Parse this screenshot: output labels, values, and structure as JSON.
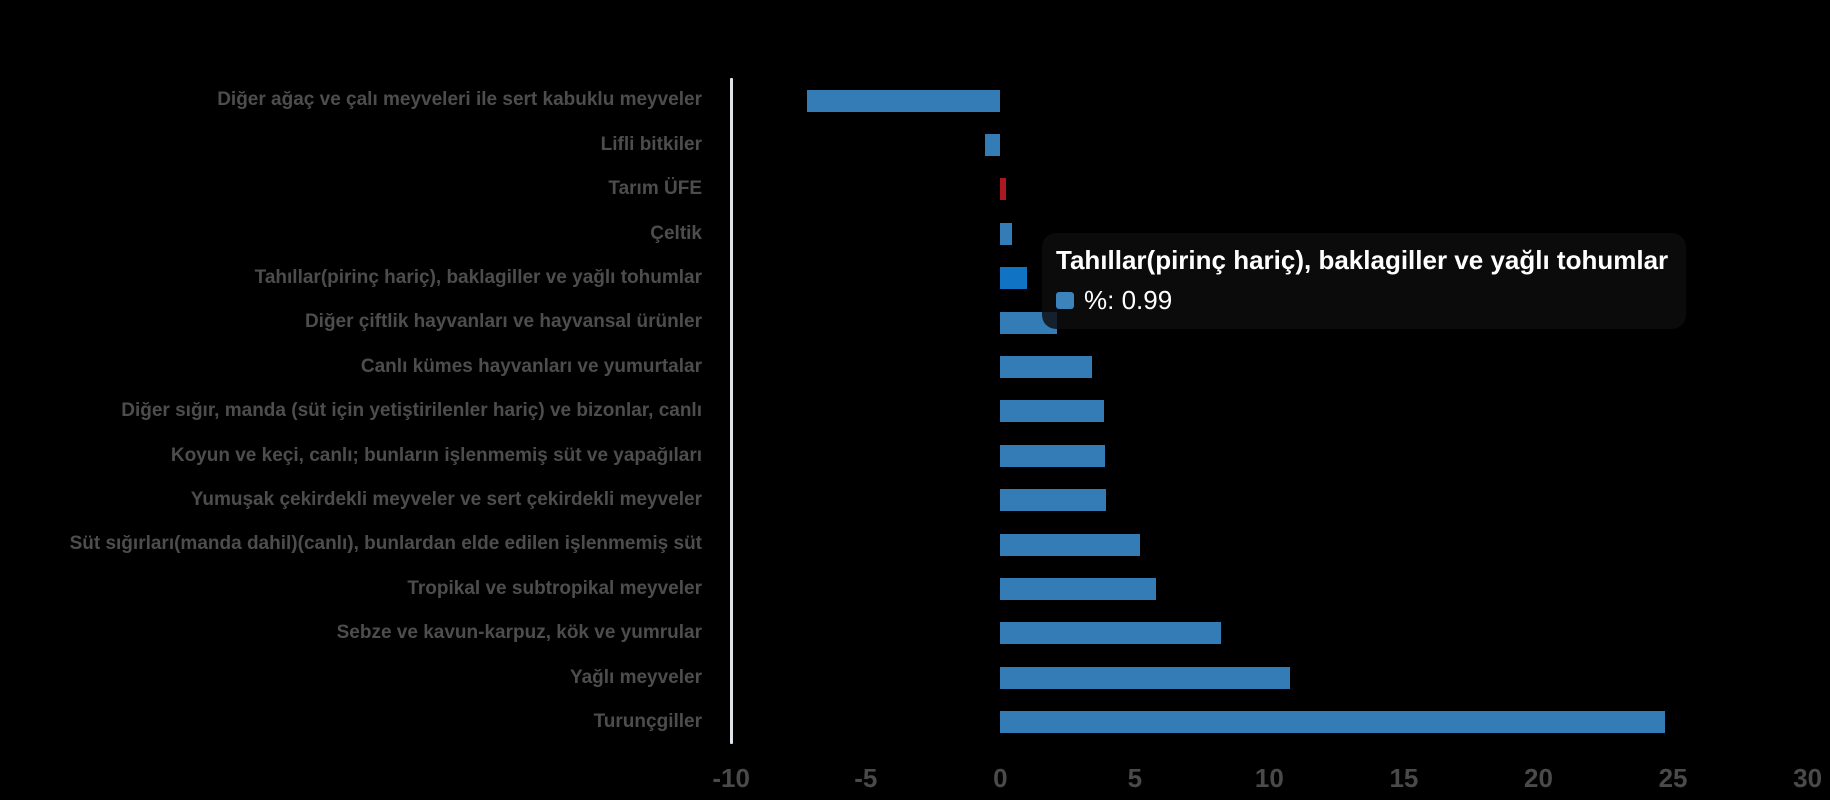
{
  "chart_data": {
    "type": "bar",
    "orientation": "horizontal",
    "title": "",
    "xlabel": "",
    "ylabel": "",
    "series_name": "%",
    "xlim": [
      -10,
      30
    ],
    "x_ticks": [
      -10,
      -5,
      0,
      5,
      10,
      15,
      20,
      25,
      30
    ],
    "grid": false,
    "legend": "none",
    "categories": [
      "Diğer ağaç ve çalı meyveleri ile sert kabuklu meyveler",
      "Lifli bitkiler",
      "Tarım ÜFE",
      "Çeltik",
      "Tahıllar(pirinç hariç), baklagiller ve yağlı tohumlar",
      "Diğer çiftlik hayvanları ve hayvansal ürünler",
      "Canlı kümes hayvanları ve yumurtalar",
      "Diğer sığır, manda (süt için yetiştirilenler hariç) ve bizonlar, canlı",
      "Koyun ve keçi, canlı; bunların işlenmemiş süt ve yapağıları",
      "Yumuşak çekirdekli meyveler ve sert çekirdekli meyveler",
      "Süt sığırları(manda dahil)(canlı), bunlardan elde edilen işlenmemiş süt",
      "Tropikal ve subtropikal meyveler",
      "Sebze ve kavun-karpuz, kök ve yumrular",
      "Yağlı meyveler",
      "Turunçgiller"
    ],
    "values": [
      -7.2,
      -0.55,
      0.2,
      0.43,
      0.99,
      2.1,
      3.4,
      3.84,
      3.89,
      3.91,
      5.19,
      5.79,
      8.2,
      10.77,
      24.7
    ],
    "bar_colors": [
      "#337CB6",
      "#337CB6",
      "#AC1822",
      "#337CB6",
      "#1173C4",
      "#337CB6",
      "#337CB6",
      "#337CB6",
      "#337CB6",
      "#337CB6",
      "#337CB6",
      "#337CB6",
      "#337CB6",
      "#337CB6",
      "#337CB6"
    ],
    "highlighted_category": "Tahıllar(pirinç hariç), baklagiller ve yağlı tohumlar"
  },
  "tooltip": {
    "title": "Tahıllar(pirinç hariç), baklagiller ve yağlı tohumlar",
    "value_label": "%: 0.99",
    "series_name": "%",
    "value": "0.99",
    "marker_color": "#3C82BB"
  },
  "colors": {
    "background": "#000000",
    "axis_line": "#DFE3EA",
    "category_label_text": "#4D4D4D",
    "tick_label_text": "#4A4A4A",
    "tooltip_background": "rgba(13,13,13,0.82)",
    "tooltip_text": "#FFFFFF"
  }
}
